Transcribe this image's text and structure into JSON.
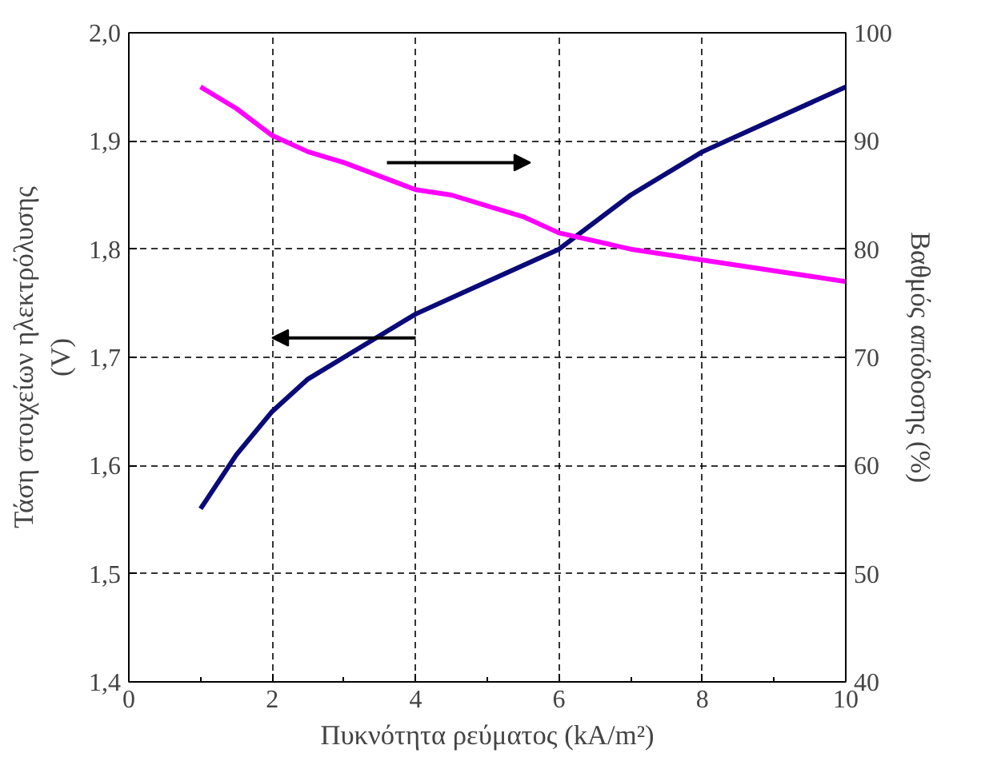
{
  "chart_data": {
    "type": "line",
    "xlabel": "Πυκνότητα ρεύματος (kA/m²)",
    "ylabel": "Τάση στοιχείων ηλεκτρόλυσης\n(V)",
    "y2label": "Βαθμός απόδοσης (%)",
    "xlim": [
      0,
      10
    ],
    "xticks": [
      0,
      2,
      4,
      6,
      8,
      10
    ],
    "ylim": [
      1.4,
      2.0
    ],
    "yticks": [
      {
        "value": 1.4,
        "label": "1,4"
      },
      {
        "value": 1.5,
        "label": "1,5"
      },
      {
        "value": 1.6,
        "label": "1,6"
      },
      {
        "value": 1.7,
        "label": "1,7"
      },
      {
        "value": 1.8,
        "label": "1,8"
      },
      {
        "value": 1.9,
        "label": "1,9"
      },
      {
        "value": 2.0,
        "label": "2,0"
      }
    ],
    "y2lim": [
      40,
      100
    ],
    "y2ticks": [
      40,
      50,
      60,
      70,
      80,
      90,
      100
    ],
    "grid": true,
    "line_style": "solid",
    "marker": "none",
    "series": [
      {
        "color": "#0a0a78",
        "x": [
          1,
          1.5,
          2,
          2.5,
          3,
          4,
          5,
          6,
          7,
          8,
          9,
          10
        ],
        "values": [
          1.56,
          1.61,
          1.65,
          1.68,
          1.7,
          1.74,
          1.77,
          1.8,
          1.85,
          1.89,
          1.92,
          1.95
        ]
      },
      {
        "color": "#ff00ff",
        "axis": "y2",
        "x": [
          1,
          1.5,
          2,
          2.5,
          3,
          4,
          4.5,
          5,
          5.5,
          6,
          7,
          8,
          9,
          10
        ],
        "values": [
          95,
          93,
          90.5,
          89,
          88,
          85.5,
          85,
          84,
          83,
          81.5,
          80,
          79,
          78,
          77
        ]
      }
    ]
  }
}
